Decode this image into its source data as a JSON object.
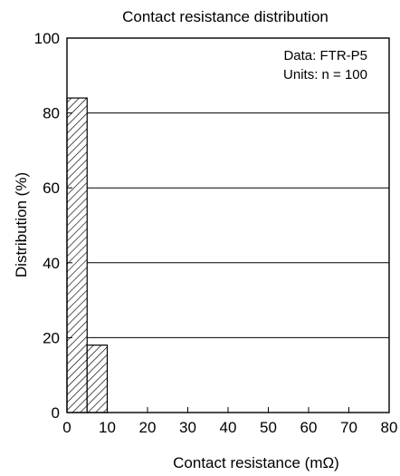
{
  "chart_data": {
    "type": "bar",
    "title": "Contact resistance distribution",
    "xlabel": "Contact resistance (mΩ)",
    "ylabel": "Distribution (%)",
    "xlim": [
      0,
      80
    ],
    "ylim": [
      0,
      100
    ],
    "xticks": [
      0,
      10,
      20,
      30,
      40,
      50,
      60,
      70,
      80
    ],
    "yticks": [
      0,
      20,
      40,
      60,
      80,
      100
    ],
    "bins": [
      {
        "from": 0,
        "to": 5,
        "value": 84
      },
      {
        "from": 5,
        "to": 10,
        "value": 18
      }
    ],
    "grid": "horizontal",
    "bar_fill": "hatched",
    "annotations": [
      "Data: FTR-P5",
      "Units: n = 100"
    ]
  }
}
